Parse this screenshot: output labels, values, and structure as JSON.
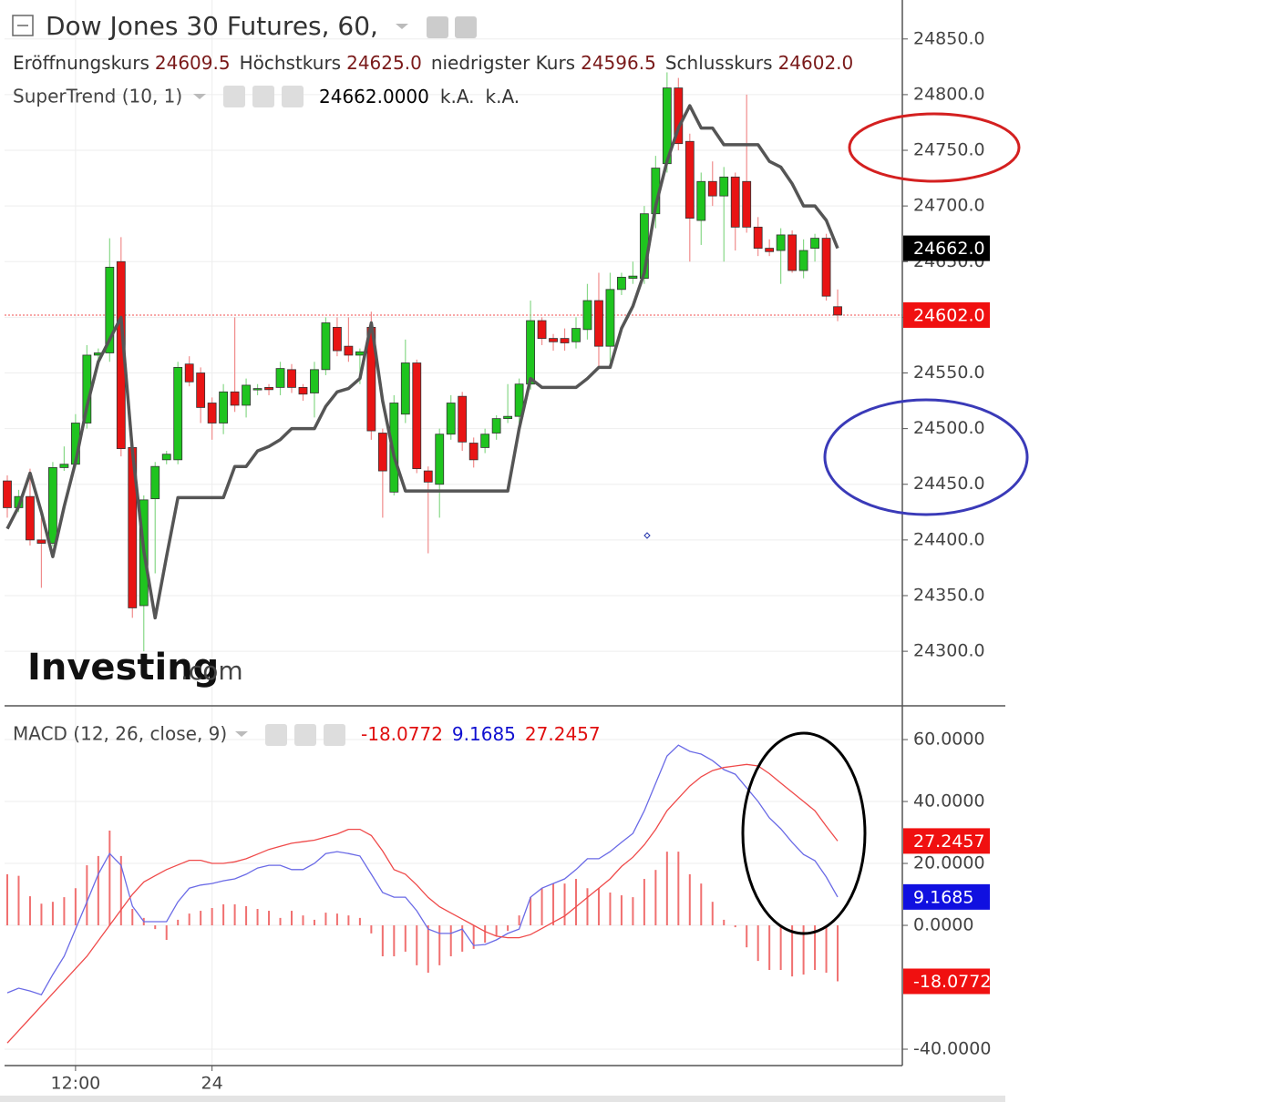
{
  "chart_data": [
    {
      "type": "candlestick",
      "title": "Dow Jones 30 Futures, 60,",
      "header_fields": [
        {
          "name": "Eröffnungskurs",
          "text": "24609.5"
        },
        {
          "name": "Höchstkurs",
          "text": "24625.0"
        },
        {
          "name": "niedrigster Kurs",
          "text": "24596.5"
        },
        {
          "name": "Schlusskurs",
          "text": "24602.0"
        }
      ],
      "indicator_values": [
        "24662.0000",
        "k.A.",
        "k.A."
      ],
      "watermark": {
        "brand": "Investing",
        "suffix": ".com"
      },
      "categories": [
        null,
        null,
        null,
        null,
        null,
        null,
        "12:00",
        null,
        null,
        null,
        null,
        null,
        null,
        null,
        null,
        null,
        null,
        null,
        "24",
        null,
        null,
        null,
        null,
        null,
        null,
        null,
        null,
        null,
        null,
        null,
        null,
        null,
        null,
        null,
        null,
        null,
        null,
        null,
        null,
        null,
        null,
        null,
        null,
        null,
        null,
        null,
        null,
        null,
        null,
        null,
        null,
        null,
        null,
        null,
        null,
        null,
        null,
        null,
        null,
        null,
        null,
        null,
        null,
        null,
        null,
        null,
        null,
        null,
        null,
        null,
        null,
        null,
        null,
        null
      ],
      "open": [
        24453,
        24429,
        24439,
        24400,
        24397,
        24465,
        24468,
        24505,
        24566,
        24568,
        24650,
        24483,
        24341,
        24437,
        24472,
        24472,
        24558,
        24550,
        24523,
        24505,
        24533,
        24521,
        24535,
        24537,
        24537,
        24553,
        24537,
        24532,
        24553,
        24591,
        24574,
        24566,
        24591,
        24496,
        24443,
        24513,
        24559,
        24462,
        24450,
        24495,
        24529,
        24487,
        24483,
        24496,
        24509,
        24511,
        24540,
        24597,
        24581,
        24581,
        24578,
        24589,
        24615,
        24574,
        24625,
        24635,
        24635,
        24693,
        24738,
        24806,
        24758,
        24687,
        24722,
        24709,
        24726,
        24722,
        24681,
        24662,
        24660,
        24674,
        24642,
        24662,
        24671,
        24609.5
      ],
      "high": [
        24458,
        24445,
        24464,
        24420,
        24470,
        24484,
        24513,
        24575,
        24572,
        24671,
        24672,
        24487,
        24440,
        24470,
        24480,
        24560,
        24565,
        24555,
        24528,
        24540,
        24600,
        24545,
        24540,
        24540,
        24560,
        24558,
        24540,
        24560,
        24600,
        24600,
        24600,
        24572,
        24605,
        24500,
        24530,
        24580,
        24562,
        24466,
        24500,
        24530,
        24533,
        24492,
        24500,
        24512,
        24540,
        24545,
        24615,
        24600,
        24585,
        24590,
        24600,
        24630,
        24640,
        24640,
        24640,
        24650,
        24700,
        24745,
        24820,
        24815,
        24765,
        24730,
        24740,
        24735,
        24730,
        24800,
        24690,
        24670,
        24680,
        24678,
        24670,
        24675,
        24675,
        24625
      ],
      "low": [
        24420,
        24425,
        24395,
        24357,
        24394,
        24462,
        24465,
        24500,
        24562,
        24560,
        24475,
        24330,
        24300,
        24370,
        24468,
        24468,
        24538,
        24505,
        24490,
        24495,
        24515,
        24510,
        24530,
        24530,
        24530,
        24532,
        24525,
        24510,
        24548,
        24565,
        24560,
        24540,
        24490,
        24420,
        24440,
        24505,
        24460,
        24388,
        24420,
        24490,
        24480,
        24465,
        24478,
        24490,
        24505,
        24500,
        24535,
        24575,
        24570,
        24570,
        24572,
        24580,
        24555,
        24560,
        24620,
        24630,
        24630,
        24680,
        24730,
        24750,
        24650,
        24665,
        24700,
        24650,
        24660,
        24676,
        24655,
        24655,
        24630,
        24640,
        24635,
        24650,
        24615,
        24596.5
      ],
      "close": [
        24429,
        24439,
        24400,
        24397,
        24465,
        24468,
        24505,
        24566,
        24568,
        24645,
        24482,
        24339,
        24436,
        24466,
        24477,
        24555,
        24542,
        24519,
        24505,
        24533,
        24521,
        24539,
        24536,
        24535,
        24554,
        24537,
        24531,
        24553,
        24595,
        24570,
        24566,
        24569,
        24498,
        24462,
        24523,
        24559,
        24464,
        24452,
        24495,
        24523,
        24488,
        24472,
        24495,
        24509,
        24511,
        24540,
        24597,
        24581,
        24578,
        24577,
        24590,
        24615,
        24574,
        24625,
        24636,
        24637,
        24693,
        24734,
        24806,
        24756,
        24689,
        24722,
        24709,
        24726,
        24681,
        24681,
        24662,
        24659,
        24674,
        24642,
        24660,
        24671,
        24619,
        24602
      ],
      "up_color": "#1fc41f",
      "down_color": "#e81414",
      "series": [
        {
          "name": "SuperTrend (10, 1)",
          "color": "#555555",
          "values": [
            24410,
            24430,
            24460,
            24425,
            24385,
            24430,
            24470,
            24520,
            24560,
            24580,
            24600,
            24480,
            24390,
            24330,
            24385,
            24438,
            24438,
            24438,
            24438,
            24438,
            24466,
            24466,
            24480,
            24484,
            24490,
            24500,
            24500,
            24500,
            24520,
            24533,
            24536,
            24545,
            24595,
            24525,
            24475,
            24444,
            24444,
            24444,
            24444,
            24444,
            24444,
            24444,
            24444,
            24444,
            24444,
            24500,
            24545,
            24537,
            24537,
            24537,
            24537,
            24545,
            24555,
            24555,
            24590,
            24610,
            24640,
            24700,
            24740,
            24770,
            24790,
            24770,
            24770,
            24755,
            24755,
            24755,
            24755,
            24740,
            24735,
            24720,
            24700,
            24700,
            24687,
            24662
          ]
        }
      ],
      "ylim": [
        24251,
        24885
      ],
      "yticks": [
        {
          "value": 24300,
          "label": "24300.0"
        },
        {
          "value": 24350,
          "label": "24350.0"
        },
        {
          "value": 24400,
          "label": "24400.0"
        },
        {
          "value": 24450,
          "label": "24450.0"
        },
        {
          "value": 24500,
          "label": "24500.0"
        },
        {
          "value": 24550,
          "label": "24550.0"
        },
        {
          "value": 24600,
          "label": "24600.0"
        },
        {
          "value": 24650,
          "label": "24650.0"
        },
        {
          "value": 24700,
          "label": "24700.0"
        },
        {
          "value": 24750,
          "label": "24750.0"
        },
        {
          "value": 24800,
          "label": "24800.0"
        },
        {
          "value": 24850,
          "label": "24850.0"
        }
      ],
      "badges": [
        {
          "value": 24662,
          "label": "24662.0",
          "color": "#000000"
        },
        {
          "value": 24602,
          "label": "24602.0",
          "color": "#f01010"
        }
      ],
      "grid": true
    },
    {
      "type": "line",
      "title": "MACD (12, 26, close, 9)",
      "header_values": [
        {
          "text": "-18.0772",
          "color": "#e01010"
        },
        {
          "text": "9.1685",
          "color": "#1010d0"
        },
        {
          "text": "27.2457",
          "color": "#e01010"
        }
      ],
      "series": [
        {
          "color": "#6a6ae6",
          "values": [
            -21.8,
            -20.3,
            -21.2,
            -22.4,
            -15.9,
            -10,
            -1.2,
            7.6,
            16.5,
            23.2,
            19.4,
            6.2,
            1.2,
            1.2,
            1.2,
            7.6,
            12,
            13,
            13.5,
            14.4,
            15,
            16.5,
            18.5,
            19.4,
            19.4,
            18,
            18,
            20,
            23.2,
            23.8,
            23.2,
            22.4,
            16.5,
            10.6,
            9.1,
            9.1,
            4.7,
            -1.2,
            -2.6,
            -2.6,
            -1.2,
            -6.5,
            -6.2,
            -4.7,
            -2.6,
            -1.2,
            9.1,
            12,
            13.5,
            15,
            18,
            21.5,
            21.5,
            23.8,
            26.8,
            29.7,
            37,
            45.9,
            54.7,
            58.2,
            56.2,
            55.3,
            53.2,
            50.3,
            48.8,
            44.4,
            40,
            34.7,
            31.2,
            26.8,
            22.9,
            20.9,
            15.6,
            9.1685
          ]
        },
        {
          "color": "#ef4a4a",
          "values": [
            -38,
            -34,
            -30,
            -26,
            -22,
            -18,
            -14,
            -10,
            -5,
            0,
            5,
            10,
            14,
            16,
            18,
            19.5,
            21,
            21,
            20,
            20,
            20.5,
            21.5,
            23,
            24.5,
            25.5,
            26.5,
            27,
            27.5,
            28.5,
            29.5,
            31,
            31,
            29,
            24,
            18,
            16.5,
            13,
            9,
            6,
            4,
            2,
            0,
            -2,
            -3.5,
            -4,
            -4,
            -3,
            -1,
            1,
            3,
            6,
            9,
            12,
            15,
            19,
            22,
            26,
            31,
            37,
            41,
            45,
            48,
            50,
            51,
            51.5,
            52,
            51.5,
            49,
            46,
            43,
            40,
            37,
            32,
            27.2457
          ]
        }
      ],
      "histogram": {
        "color": "#f07070",
        "values": [
          16.5,
          16,
          9.4,
          7,
          7.6,
          9.1,
          12,
          19.4,
          22.4,
          30.6,
          22.4,
          5.3,
          2.4,
          -1.2,
          -4.7,
          1.8,
          3.8,
          4.7,
          5.6,
          6.8,
          6.8,
          6.2,
          5.3,
          4.7,
          2.4,
          4.7,
          3.2,
          1.8,
          4.1,
          3.8,
          3.2,
          2.4,
          -2.6,
          -10,
          -10,
          -8.5,
          -12.9,
          -15.3,
          -12.9,
          -10,
          -8.5,
          -7.6,
          -5.6,
          -3.5,
          -1.8,
          3.2,
          9.1,
          12,
          13.5,
          13.5,
          15,
          12,
          12,
          10.6,
          9.7,
          9.1,
          15,
          17.9,
          23.8,
          23.8,
          16.5,
          13.5,
          7.6,
          1.8,
          -0.6,
          -7.1,
          -11.5,
          -14.4,
          -14.4,
          -16.5,
          -15.9,
          -14.4,
          -15.3,
          -18.0772
        ]
      },
      "ylim": [
        -44.7,
        70.9
      ],
      "yticks": [
        {
          "value": -40,
          "label": "-40.0000"
        },
        {
          "value": 0,
          "label": "0.0000"
        },
        {
          "value": 20,
          "label": "20.0000"
        },
        {
          "value": 40,
          "label": "40.0000"
        },
        {
          "value": 60,
          "label": "60.0000"
        }
      ],
      "badges": [
        {
          "value": 27.2457,
          "label": "27.2457",
          "color": "#f01010"
        },
        {
          "value": 9.1685,
          "label": "9.1685",
          "color": "#1010e0"
        },
        {
          "value": -18.0772,
          "label": "-18.0772",
          "color": "#f01010"
        }
      ],
      "grid": true
    }
  ]
}
